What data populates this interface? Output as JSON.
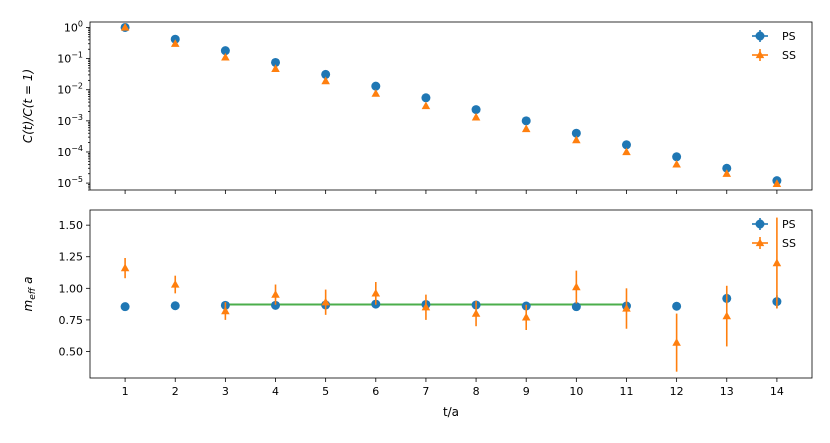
{
  "colors": {
    "PS": "#1f77b4",
    "SS": "#ff7f0e",
    "fit": "#2ca02c"
  },
  "chart_data": [
    {
      "type": "scatter",
      "title": "",
      "xlabel": "",
      "ylabel": "C(t)/C(t = 1)",
      "yscale": "log",
      "ylim": [
        6e-06,
        1.5
      ],
      "xlim": [
        0.3,
        14.7
      ],
      "y_ticks": [
        {
          "value": 1,
          "label": "10",
          "exp": "0"
        },
        {
          "value": 0.1,
          "label": "10",
          "exp": "−1"
        },
        {
          "value": 0.01,
          "label": "10",
          "exp": "−2"
        },
        {
          "value": 0.001,
          "label": "10",
          "exp": "−3"
        },
        {
          "value": 0.0001,
          "label": "10",
          "exp": "−4"
        },
        {
          "value": 1e-05,
          "label": "10",
          "exp": "−5"
        }
      ],
      "legend": "top-right",
      "x": [
        1,
        2,
        3,
        4,
        5,
        6,
        7,
        8,
        9,
        10,
        11,
        12,
        13,
        14
      ],
      "series": [
        {
          "name": "PS",
          "marker": "circle",
          "values": [
            1.0,
            0.42,
            0.18,
            0.075,
            0.031,
            0.013,
            0.0055,
            0.0023,
            0.001,
            0.0004,
            0.00017,
            7e-05,
            3e-05,
            1.2e-05
          ]
        },
        {
          "name": "SS",
          "marker": "triangle",
          "values": [
            1.0,
            0.3,
            0.11,
            0.047,
            0.019,
            0.0075,
            0.003,
            0.0013,
            0.00055,
            0.00024,
            0.0001,
            4e-05,
            2e-05,
            9.5e-06
          ]
        }
      ]
    },
    {
      "type": "scatter",
      "title": "",
      "xlabel": "t/a",
      "ylabel": "m",
      "ylabel_sub": "eff",
      "ylabel_suffix": "a",
      "ylim": [
        0.29,
        1.62
      ],
      "xlim": [
        0.3,
        14.7
      ],
      "y_ticks": [
        {
          "value": 0.5,
          "label": "0.50"
        },
        {
          "value": 0.75,
          "label": "0.75"
        },
        {
          "value": 1.0,
          "label": "1.00"
        },
        {
          "value": 1.25,
          "label": "1.25"
        },
        {
          "value": 1.5,
          "label": "1.50"
        }
      ],
      "x_ticks": [
        "1",
        "2",
        "3",
        "4",
        "5",
        "6",
        "7",
        "8",
        "9",
        "10",
        "11",
        "12",
        "13",
        "14"
      ],
      "legend": "top-right",
      "x": [
        1,
        2,
        3,
        4,
        5,
        6,
        7,
        8,
        9,
        10,
        11,
        12,
        13,
        14
      ],
      "series": [
        {
          "name": "PS",
          "marker": "circle",
          "values": [
            0.855,
            0.862,
            0.865,
            0.865,
            0.868,
            0.875,
            0.872,
            0.868,
            0.86,
            0.855,
            0.86,
            0.858,
            0.92,
            0.895
          ],
          "errors": [
            0.004,
            0.004,
            0.005,
            0.006,
            0.03,
            0.008,
            0.01,
            0.012,
            0.015,
            0.015,
            0.02,
            0.02,
            0.04,
            0.05
          ]
        },
        {
          "name": "SS",
          "marker": "triangle",
          "values": [
            1.16,
            1.03,
            0.82,
            0.95,
            0.89,
            0.96,
            0.85,
            0.8,
            0.77,
            1.01,
            0.84,
            0.57,
            0.78,
            1.2
          ],
          "errors": [
            0.08,
            0.07,
            0.07,
            0.08,
            0.1,
            0.09,
            0.1,
            0.1,
            0.1,
            0.13,
            0.16,
            0.23,
            0.24,
            0.36
          ]
        }
      ],
      "fit": {
        "x_start": 3,
        "x_end": 11,
        "value": 0.872
      }
    }
  ]
}
